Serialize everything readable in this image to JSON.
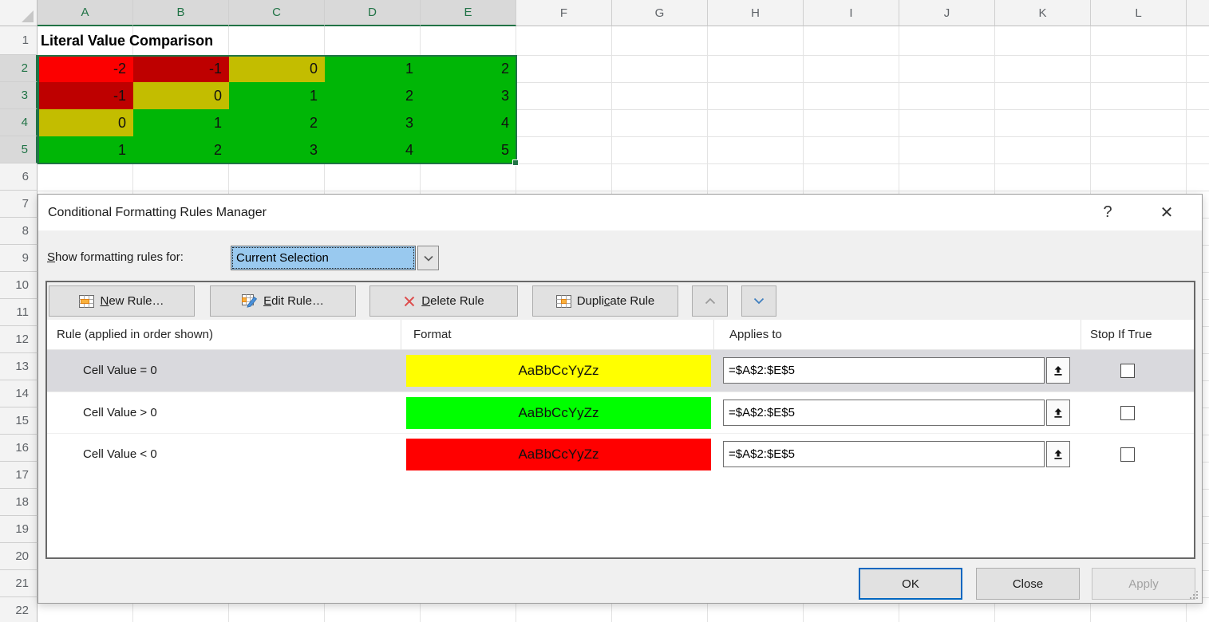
{
  "palette": {
    "excel_accent": "#217346",
    "cell_red_active": "#FC0000",
    "cell_red_selected": "#BE0000",
    "cell_yellow_selected": "#C3BD00",
    "cell_green_selected": "#00B606",
    "preview_yellow": "#FFFF00",
    "preview_green": "#00FF00",
    "preview_red": "#FF0000",
    "combo_focus_blue": "#99C9EF",
    "ok_border_blue": "#0067C0"
  },
  "spreadsheet": {
    "columns": [
      "A",
      "B",
      "C",
      "D",
      "E",
      "F",
      "G",
      "H",
      "I",
      "J",
      "K",
      "L"
    ],
    "selected_column_count": 5,
    "row_count": 22,
    "selected_rows": [
      2,
      3,
      4,
      5
    ],
    "a1_title": "Literal Value Comparison",
    "data_rows": [
      {
        "row": 2,
        "cells": [
          {
            "v": "-2",
            "bg": "#FC0000"
          },
          {
            "v": "-1",
            "bg": "#BE0000"
          },
          {
            "v": "0",
            "bg": "#C3BD00"
          },
          {
            "v": "1",
            "bg": "#00B606"
          },
          {
            "v": "2",
            "bg": "#00B606"
          }
        ]
      },
      {
        "row": 3,
        "cells": [
          {
            "v": "-1",
            "bg": "#BE0000"
          },
          {
            "v": "0",
            "bg": "#C3BD00"
          },
          {
            "v": "1",
            "bg": "#00B606"
          },
          {
            "v": "2",
            "bg": "#00B606"
          },
          {
            "v": "3",
            "bg": "#00B606"
          }
        ]
      },
      {
        "row": 4,
        "cells": [
          {
            "v": "0",
            "bg": "#C3BD00"
          },
          {
            "v": "1",
            "bg": "#00B606"
          },
          {
            "v": "2",
            "bg": "#00B606"
          },
          {
            "v": "3",
            "bg": "#00B606"
          },
          {
            "v": "4",
            "bg": "#00B606"
          }
        ]
      },
      {
        "row": 5,
        "cells": [
          {
            "v": "1",
            "bg": "#00B606"
          },
          {
            "v": "2",
            "bg": "#00B606"
          },
          {
            "v": "3",
            "bg": "#00B606"
          },
          {
            "v": "4",
            "bg": "#00B606"
          },
          {
            "v": "5",
            "bg": "#00B606"
          }
        ]
      }
    ]
  },
  "dialog": {
    "title": "Conditional Formatting Rules Manager",
    "help_glyph": "?",
    "close_glyph": "✕",
    "show_label": {
      "pre": "",
      "key": "S",
      "post": "how formatting rules for:"
    },
    "combobox": {
      "value": "Current Selection"
    },
    "toolbar": {
      "new_rule": {
        "pre": "",
        "key": "N",
        "post": "ew Rule…"
      },
      "edit_rule": {
        "pre": "",
        "key": "E",
        "post": "dit Rule…"
      },
      "delete_rule": {
        "pre": "",
        "key": "D",
        "post": "elete Rule"
      },
      "duplicate_rule": {
        "pre": "Dupli",
        "key": "c",
        "post": "ate Rule"
      }
    },
    "list": {
      "headers": {
        "rule": "Rule (applied in order shown)",
        "format": "Format",
        "applies_to": "Applies to",
        "stop_if_true": "Stop If True"
      },
      "rules": [
        {
          "condition": "Cell Value = 0",
          "preview_text": "AaBbCcYyZz",
          "preview_bg": "#FFFF00",
          "applies_to": "=$A$2:$E$5",
          "stop_if_true": false,
          "selected": true
        },
        {
          "condition": "Cell Value > 0",
          "preview_text": "AaBbCcYyZz",
          "preview_bg": "#00FF00",
          "applies_to": "=$A$2:$E$5",
          "stop_if_true": false,
          "selected": false
        },
        {
          "condition": "Cell Value < 0",
          "preview_text": "AaBbCcYyZz",
          "preview_bg": "#FF0000",
          "applies_to": "=$A$2:$E$5",
          "stop_if_true": false,
          "selected": false
        }
      ]
    },
    "footer": {
      "ok": "OK",
      "close": "Close",
      "apply": "Apply"
    }
  }
}
